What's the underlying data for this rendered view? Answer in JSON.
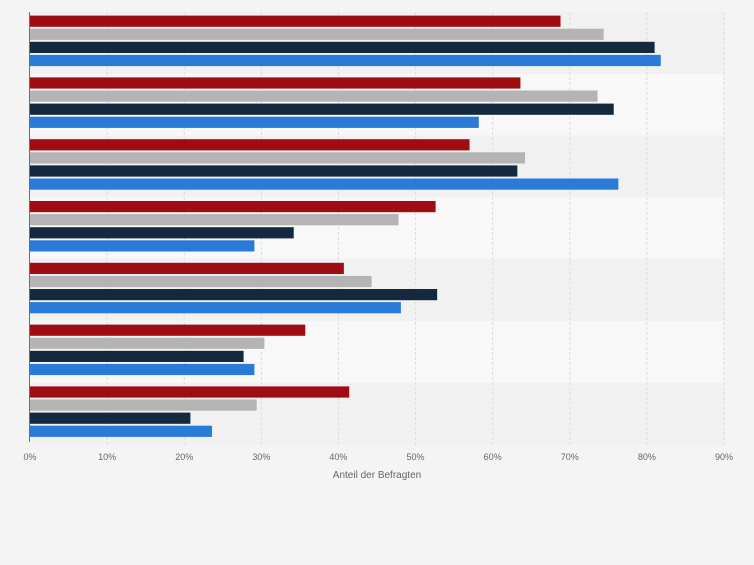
{
  "chart_data": {
    "type": "bar",
    "orientation": "horizontal",
    "title": "",
    "xlabel": "Anteil der Befragten",
    "ylabel": "",
    "xlim": [
      0,
      90
    ],
    "ticks": [
      "0%",
      "10%",
      "20%",
      "30%",
      "40%",
      "50%",
      "60%",
      "70%",
      "80%",
      "90%"
    ],
    "grid": true,
    "legend": "none",
    "categories": [
      "",
      "",
      "",
      "",
      "",
      "",
      ""
    ],
    "series": [
      {
        "color": "#a00c14",
        "values": [
          68.8,
          63.6,
          57,
          52.6,
          40.7,
          35.7,
          41.4
        ]
      },
      {
        "color": "#b4b4b4",
        "values": [
          74.4,
          73.6,
          64.2,
          47.8,
          44.3,
          30.4,
          29.4
        ]
      },
      {
        "color": "#14283e",
        "values": [
          81,
          75.7,
          63.2,
          34.2,
          52.8,
          27.7,
          20.8
        ]
      },
      {
        "color": "#2a7ad8",
        "values": [
          81.8,
          58.2,
          76.3,
          29.1,
          48.1,
          29.1,
          23.6
        ]
      }
    ]
  }
}
